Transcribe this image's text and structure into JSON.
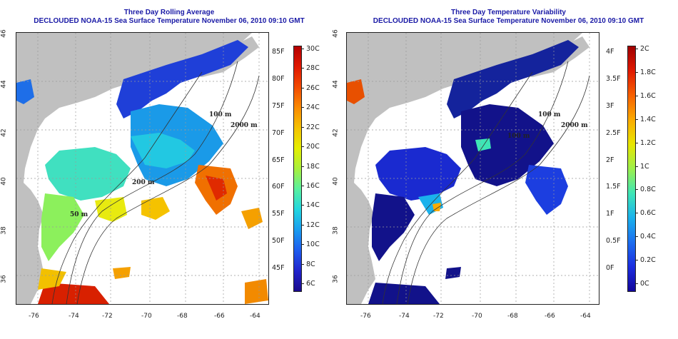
{
  "left_panel": {
    "title_line1": "Three Day Rolling Average",
    "title_line2": "DECLOUDED NOAA-15 Sea Surface Temperature November 06, 2010 09:10 GMT",
    "colorbar": {
      "unit_labels_c": [
        "30C",
        "28C",
        "26C",
        "24C",
        "22C",
        "20C",
        "18C",
        "16C",
        "14C",
        "12C",
        "10C",
        "8C",
        "6C"
      ],
      "unit_labels_f": [
        "85F",
        "80F",
        "75F",
        "70F",
        "65F",
        "60F",
        "55F",
        "50F",
        "45F"
      ],
      "colors": [
        "#b40000",
        "#e01800",
        "#f24a00",
        "#fa8a00",
        "#f5c200",
        "#e5ee00",
        "#a8f03c",
        "#58f0a0",
        "#22d6e0",
        "#1a9cf0",
        "#1e5cee",
        "#2124cc",
        "#1a0a8c"
      ]
    },
    "contour_labels": [
      "100 m",
      "2000 m",
      "200 m",
      "50 m",
      "200 m",
      "50 m"
    ]
  },
  "right_panel": {
    "title_line1": "Three Day Temperature Variability",
    "title_line2": "DECLOUDED NOAA-15 Sea Surface Temperature November 06, 2010 09:10 GMT",
    "colorbar": {
      "unit_labels_c": [
        "2C",
        "1.8C",
        "1.6C",
        "1.4C",
        "1.2C",
        "1C",
        "0.8C",
        "0.6C",
        "0.4C",
        "0.2C",
        "0C"
      ],
      "unit_labels_f": [
        "4F",
        "3.5F",
        "3F",
        "2.5F",
        "2F",
        "1.5F",
        "1F",
        "0.5F",
        "0F"
      ],
      "colors": [
        "#a00000",
        "#e01a00",
        "#f76000",
        "#fbab00",
        "#e8e600",
        "#9cf04c",
        "#3ee6b6",
        "#1ab2ec",
        "#1c6ef0",
        "#1c2ee0",
        "#12069a"
      ]
    },
    "contour_labels": [
      "100 m",
      "2000 m",
      "100 m"
    ]
  },
  "axes": {
    "x_ticks": [
      "-76",
      "-74",
      "-72",
      "-70",
      "-68",
      "-66",
      "-64"
    ],
    "y_ticks": [
      "46",
      "44",
      "42",
      "40",
      "38",
      "36"
    ]
  },
  "icons": {
    "land": "land-mask",
    "sea": "sea-surface"
  }
}
